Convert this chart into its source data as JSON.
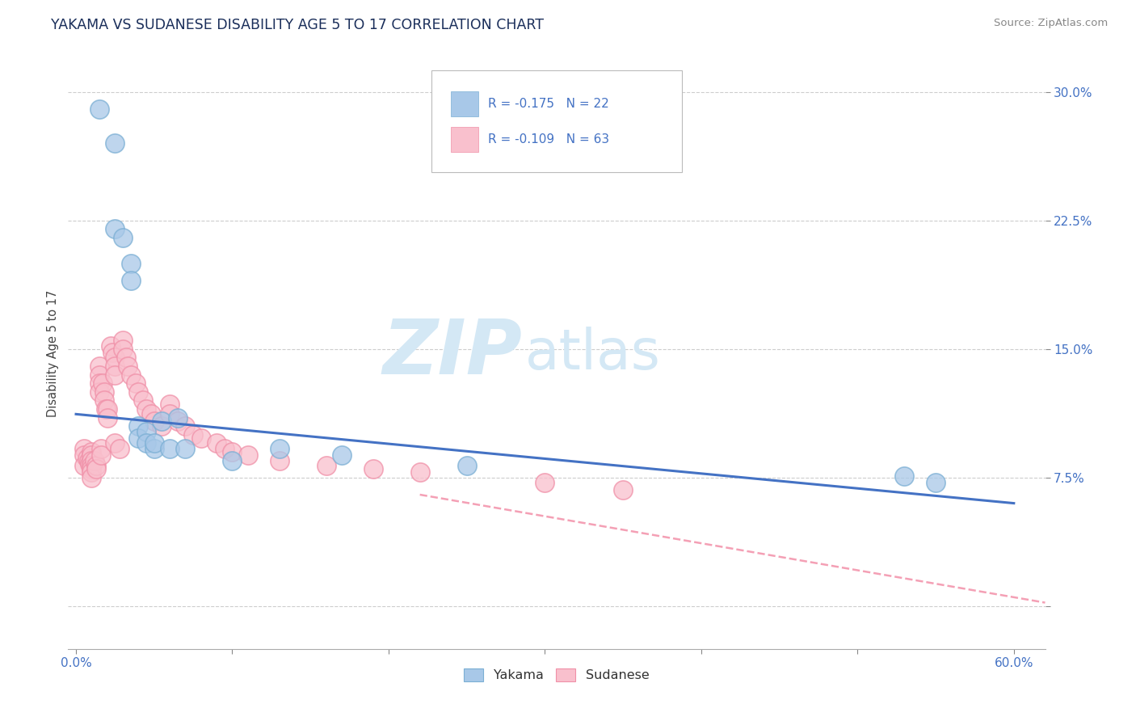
{
  "title": "YAKAMA VS SUDANESE DISABILITY AGE 5 TO 17 CORRELATION CHART",
  "source_text": "Source: ZipAtlas.com",
  "ylabel": "Disability Age 5 to 17",
  "xlim": [
    -0.005,
    0.62
  ],
  "ylim": [
    -0.025,
    0.32
  ],
  "xticks": [
    0.0,
    0.1,
    0.2,
    0.3,
    0.4,
    0.5,
    0.6
  ],
  "xticklabels_bottom": [
    "0.0%",
    "",
    "",
    "",
    "",
    "",
    "60.0%"
  ],
  "yticks": [
    0.0,
    0.075,
    0.15,
    0.225,
    0.3
  ],
  "yticklabels": [
    "",
    "7.5%",
    "15.0%",
    "22.5%",
    "30.0%"
  ],
  "legend_r_blue": "R = -0.175",
  "legend_n_blue": "N = 22",
  "legend_r_pink": "R = -0.109",
  "legend_n_pink": "N = 63",
  "legend_label_blue": "Yakama",
  "legend_label_pink": "Sudanese",
  "blue_color": "#a8c8e8",
  "blue_edge_color": "#7bafd4",
  "pink_color": "#f9c0cd",
  "pink_edge_color": "#f090a8",
  "blue_line_color": "#4472c4",
  "pink_line_color": "#f4a0b5",
  "watermark_zip": "ZIP",
  "watermark_atlas": "atlas",
  "blue_x": [
    0.015,
    0.025,
    0.025,
    0.03,
    0.035,
    0.035,
    0.04,
    0.04,
    0.045,
    0.045,
    0.05,
    0.05,
    0.055,
    0.06,
    0.065,
    0.07,
    0.1,
    0.13,
    0.17,
    0.25,
    0.53,
    0.55
  ],
  "blue_y": [
    0.29,
    0.22,
    0.27,
    0.215,
    0.2,
    0.19,
    0.105,
    0.098,
    0.102,
    0.095,
    0.092,
    0.095,
    0.108,
    0.092,
    0.11,
    0.092,
    0.085,
    0.092,
    0.088,
    0.082,
    0.076,
    0.072
  ],
  "pink_x": [
    0.005,
    0.005,
    0.005,
    0.007,
    0.008,
    0.009,
    0.01,
    0.01,
    0.01,
    0.01,
    0.01,
    0.01,
    0.01,
    0.012,
    0.013,
    0.013,
    0.015,
    0.015,
    0.015,
    0.015,
    0.016,
    0.016,
    0.017,
    0.018,
    0.018,
    0.019,
    0.02,
    0.02,
    0.022,
    0.023,
    0.025,
    0.025,
    0.025,
    0.025,
    0.028,
    0.03,
    0.03,
    0.032,
    0.033,
    0.035,
    0.038,
    0.04,
    0.043,
    0.045,
    0.048,
    0.05,
    0.055,
    0.06,
    0.06,
    0.065,
    0.07,
    0.075,
    0.08,
    0.09,
    0.095,
    0.1,
    0.11,
    0.13,
    0.16,
    0.19,
    0.22,
    0.3,
    0.35
  ],
  "pink_y": [
    0.092,
    0.088,
    0.082,
    0.086,
    0.085,
    0.083,
    0.09,
    0.088,
    0.085,
    0.082,
    0.08,
    0.078,
    0.075,
    0.085,
    0.082,
    0.08,
    0.14,
    0.135,
    0.13,
    0.125,
    0.092,
    0.088,
    0.13,
    0.125,
    0.12,
    0.115,
    0.115,
    0.11,
    0.152,
    0.148,
    0.145,
    0.14,
    0.135,
    0.095,
    0.092,
    0.155,
    0.15,
    0.145,
    0.14,
    0.135,
    0.13,
    0.125,
    0.12,
    0.115,
    0.112,
    0.108,
    0.105,
    0.118,
    0.112,
    0.108,
    0.105,
    0.1,
    0.098,
    0.095,
    0.092,
    0.09,
    0.088,
    0.085,
    0.082,
    0.08,
    0.078,
    0.072,
    0.068
  ],
  "blue_line_x": [
    0.0,
    0.6
  ],
  "blue_line_y": [
    0.112,
    0.06
  ],
  "pink_line_x": [
    0.22,
    0.62
  ],
  "pink_line_y": [
    0.065,
    0.002
  ],
  "grid_color": "#c8c8c8",
  "title_color": "#1a2e5a",
  "axis_color": "#4472c4",
  "tick_color": "#888888",
  "bg_color": "#ffffff"
}
